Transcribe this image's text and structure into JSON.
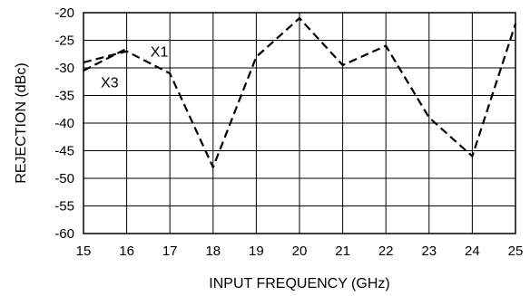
{
  "chart_data": {
    "type": "line",
    "title": "",
    "xlabel": "INPUT FREQUENCY (GHz)",
    "ylabel": "REJECTION (dBc)",
    "xlim": [
      15,
      25
    ],
    "ylim": [
      -60,
      -20
    ],
    "grid": true,
    "x_ticks": [
      "15",
      "16",
      "17",
      "18",
      "19",
      "20",
      "21",
      "22",
      "23",
      "24",
      "25"
    ],
    "y_ticks": [
      "-20",
      "-25",
      "-30",
      "-35",
      "-40",
      "-45",
      "-50",
      "-55",
      "-60"
    ],
    "series": [
      {
        "name": "X1",
        "style": "dashed",
        "x": [
          15,
          16,
          17,
          18,
          19,
          20,
          21,
          22,
          23,
          24,
          25
        ],
        "y": [
          -29,
          -27,
          -31,
          -48,
          -28,
          -21,
          -29.5,
          -26,
          -39,
          -46,
          -22
        ]
      },
      {
        "name": "X3",
        "style": "dashed",
        "x": [
          15,
          16
        ],
        "y": [
          -30.5,
          -26.5
        ]
      }
    ],
    "annotations": [
      {
        "text": "X1",
        "x": 16.55,
        "y": -27
      },
      {
        "text": "X3",
        "x": 15.4,
        "y": -32.5
      }
    ]
  }
}
